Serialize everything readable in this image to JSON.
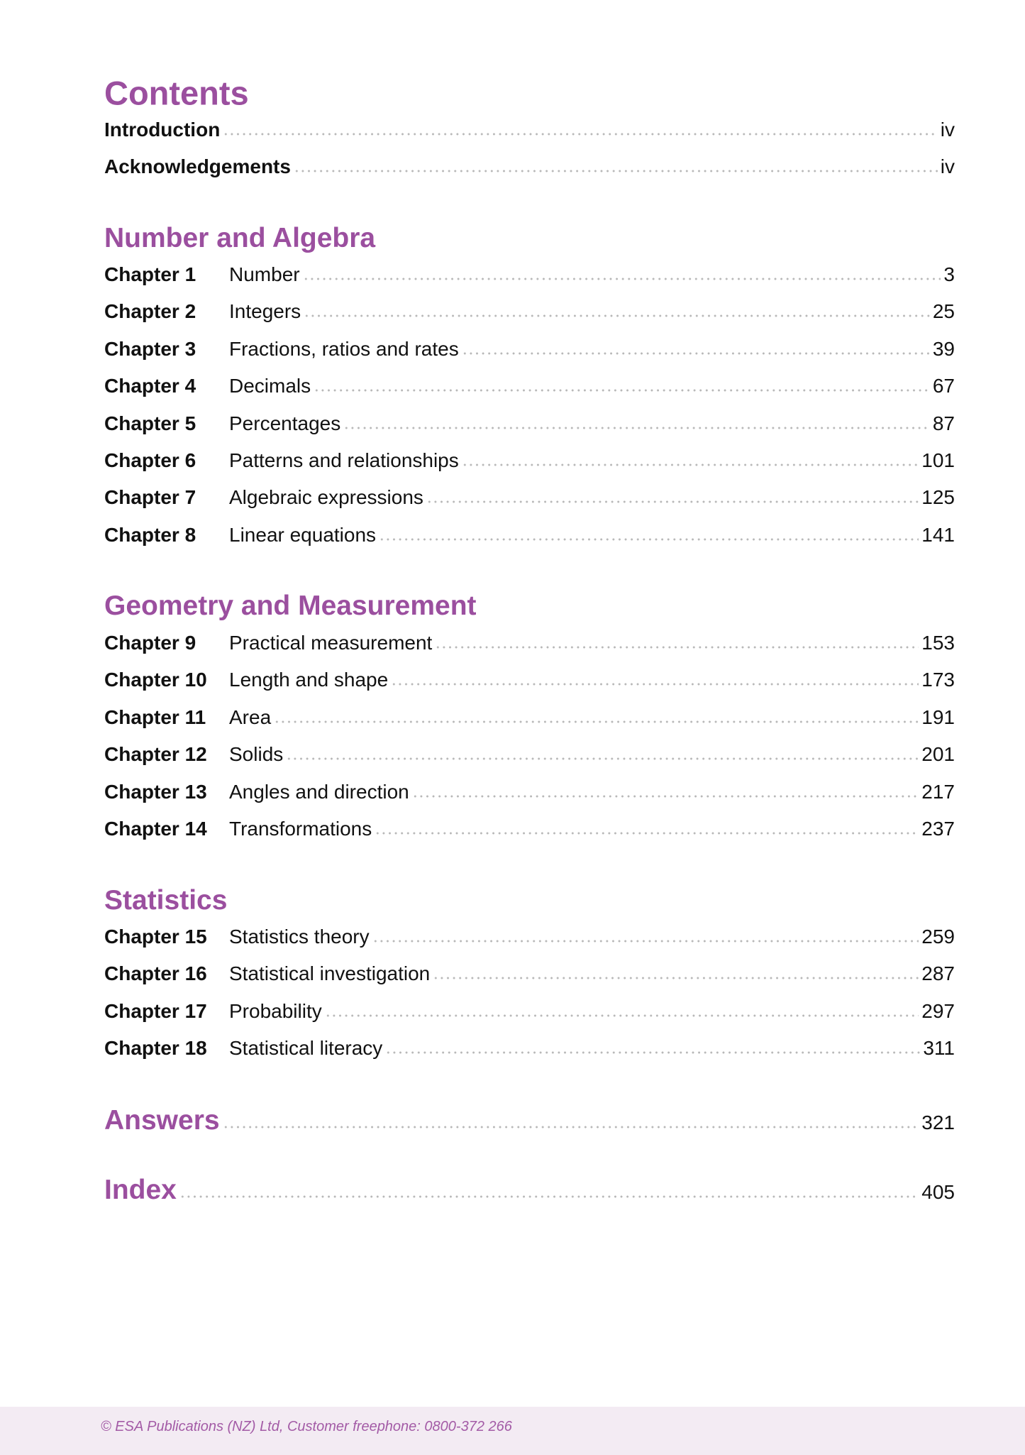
{
  "title": "Contents",
  "front": [
    {
      "label": "Introduction",
      "page": "iv"
    },
    {
      "label": "Acknowledgements",
      "page": "iv"
    }
  ],
  "sections": [
    {
      "heading": "Number and Algebra",
      "chapters": [
        {
          "chapter": "Chapter 1",
          "title": "Number",
          "page": "3"
        },
        {
          "chapter": "Chapter 2",
          "title": "Integers",
          "page": "25"
        },
        {
          "chapter": "Chapter 3",
          "title": "Fractions, ratios and rates",
          "page": "39"
        },
        {
          "chapter": "Chapter 4",
          "title": "Decimals",
          "page": "67"
        },
        {
          "chapter": "Chapter 5",
          "title": "Percentages",
          "page": "87"
        },
        {
          "chapter": "Chapter 6",
          "title": "Patterns and relationships",
          "page": "101"
        },
        {
          "chapter": "Chapter 7",
          "title": "Algebraic expressions",
          "page": "125"
        },
        {
          "chapter": "Chapter 8",
          "title": "Linear equations",
          "page": "141"
        }
      ]
    },
    {
      "heading": "Geometry and Measurement",
      "chapters": [
        {
          "chapter": "Chapter 9",
          "title": "Practical measurement",
          "page": "153"
        },
        {
          "chapter": "Chapter 10",
          "title": "Length and shape",
          "page": "173"
        },
        {
          "chapter": "Chapter 11",
          "title": "Area",
          "page": "191"
        },
        {
          "chapter": "Chapter 12",
          "title": "Solids",
          "page": "201"
        },
        {
          "chapter": "Chapter 13",
          "title": "Angles and direction",
          "page": "217"
        },
        {
          "chapter": "Chapter 14",
          "title": "Transformations",
          "page": "237"
        }
      ]
    },
    {
      "heading": "Statistics",
      "chapters": [
        {
          "chapter": "Chapter 15",
          "title": "Statistics theory",
          "page": "259"
        },
        {
          "chapter": "Chapter 16",
          "title": "Statistical investigation",
          "page": "287"
        },
        {
          "chapter": "Chapter 17",
          "title": "Probability",
          "page": "297"
        },
        {
          "chapter": "Chapter 18",
          "title": "Statistical literacy",
          "page": "311"
        }
      ]
    }
  ],
  "back": [
    {
      "label": "Answers",
      "page": "321"
    },
    {
      "label": "Index",
      "page": "405"
    }
  ],
  "footer": "© ESA Publications (NZ) Ltd, Customer freephone: 0800-372 266",
  "colors": {
    "accent": "#9b4f9f",
    "footer_bg": "#f3ebf3"
  }
}
